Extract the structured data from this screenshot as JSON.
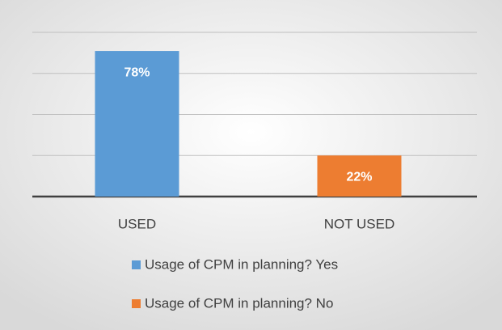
{
  "chart_data": {
    "type": "bar",
    "categories": [
      "USED",
      "NOT USED"
    ],
    "series": [
      {
        "name": "Usage of CPM in planning? Yes",
        "color": "#5b9bd5",
        "values": [
          78,
          null
        ],
        "value_labels": [
          "78%",
          null
        ]
      },
      {
        "name": "Usage of CPM in planning? No",
        "color": "#ed7d31",
        "values": [
          null,
          22
        ],
        "value_labels": [
          null,
          "22%"
        ]
      }
    ],
    "ylim": [
      0,
      88
    ],
    "yticks": [
      0,
      22,
      44,
      66,
      88
    ],
    "grid": true,
    "legend": "bottom"
  }
}
